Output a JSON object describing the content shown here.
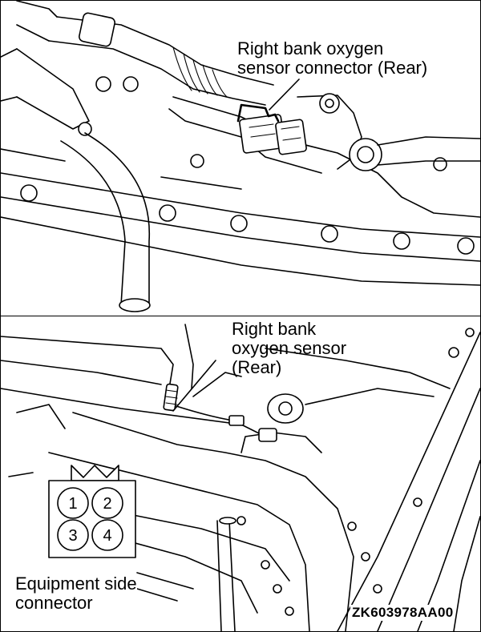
{
  "figure": {
    "code": "ZK603978AA00"
  },
  "top_view": {
    "callout": {
      "line1": "Right bank oxygen",
      "line2": "sensor connector (Rear)"
    }
  },
  "bottom_view": {
    "callout": {
      "line1": "Right bank",
      "line2": "oxygen sensor",
      "line3": "(Rear)"
    }
  },
  "connector": {
    "caption_line1": "Equipment side",
    "caption_line2": "connector",
    "pins": [
      "1",
      "2",
      "3",
      "4"
    ]
  }
}
